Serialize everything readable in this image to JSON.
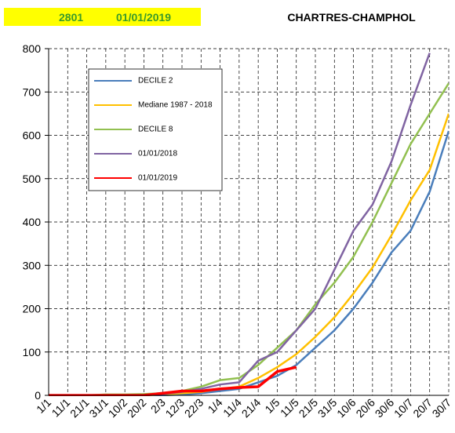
{
  "chart_data": {
    "type": "line",
    "station": "2801",
    "date": "01/01/2019",
    "title": "CHARTRES-CHAMPHOL",
    "categories": [
      "1/1",
      "11/1",
      "21/1",
      "31/1",
      "10/2",
      "20/2",
      "2/3",
      "12/3",
      "22/3",
      "1/4",
      "11/4",
      "21/4",
      "1/5",
      "11/5",
      "21/5",
      "31/5",
      "10/6",
      "20/6",
      "30/6",
      "10/7",
      "20/7",
      "30/7"
    ],
    "series": [
      {
        "name": "DECILE 2",
        "color": "#4a7ebb",
        "values": [
          0,
          0,
          0,
          0,
          0,
          0,
          0,
          2,
          5,
          10,
          15,
          30,
          45,
          70,
          110,
          150,
          200,
          260,
          330,
          380,
          470,
          610
        ]
      },
      {
        "name": "Mediane 1987 - 2018",
        "color": "#ffc000",
        "values": [
          0,
          0,
          0,
          0,
          0,
          0,
          2,
          5,
          8,
          15,
          20,
          40,
          65,
          95,
          135,
          180,
          235,
          295,
          370,
          450,
          520,
          650
        ]
      },
      {
        "name": "DECILE 8",
        "color": "#92c050",
        "values": [
          0,
          0,
          0,
          2,
          2,
          3,
          5,
          10,
          20,
          35,
          40,
          70,
          110,
          150,
          210,
          260,
          320,
          400,
          490,
          580,
          650,
          720
        ]
      },
      {
        "name": "01/01/2018",
        "color": "#8064a2",
        "values": [
          0,
          0,
          0,
          0,
          0,
          0,
          3,
          8,
          15,
          25,
          30,
          80,
          100,
          150,
          200,
          290,
          380,
          440,
          540,
          670,
          790,
          null
        ]
      },
      {
        "name": "01/01/2019",
        "color": "#ff0000",
        "values": [
          0,
          0,
          0,
          0,
          0,
          0,
          5,
          10,
          10,
          15,
          18,
          20,
          55,
          65,
          null,
          null,
          null,
          null,
          null,
          null,
          null,
          null
        ]
      }
    ],
    "ylim": [
      0,
      800
    ],
    "yticks": [
      0,
      100,
      200,
      300,
      400,
      500,
      600,
      700,
      800
    ],
    "grid": true
  }
}
